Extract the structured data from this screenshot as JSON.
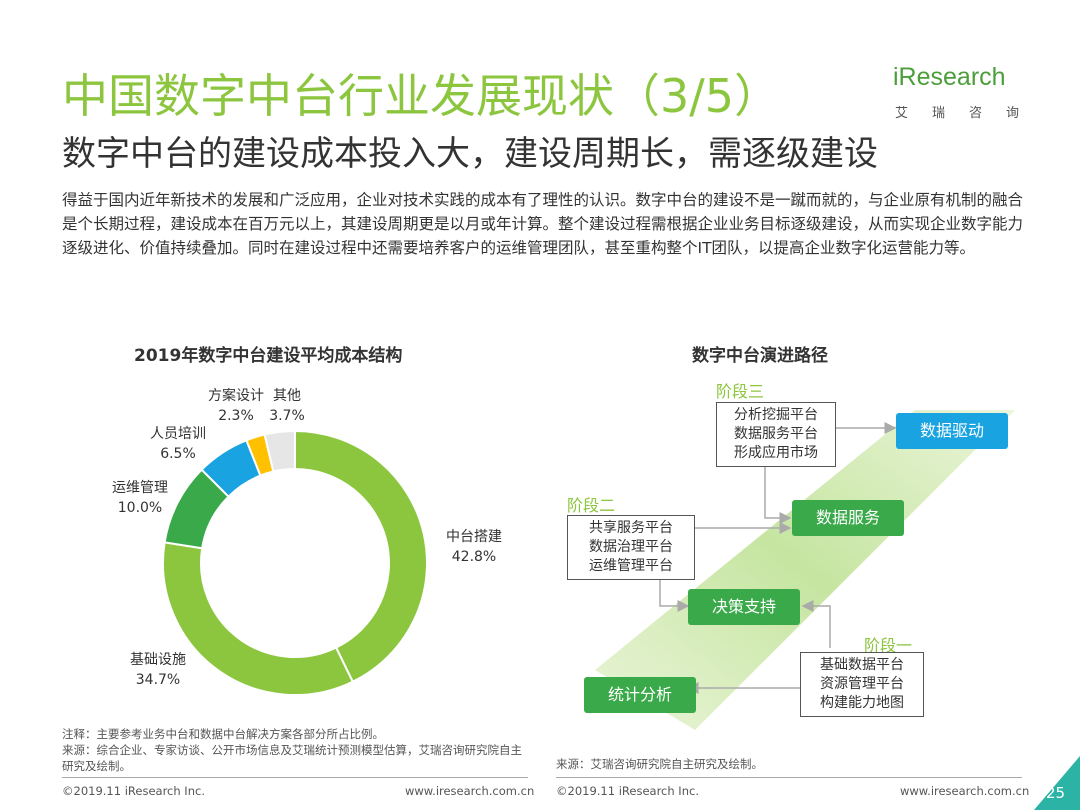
{
  "header": {
    "title": "中国数字中台行业发展现状（3/5）",
    "subtitle": "数字中台的建设成本投入大，建设周期长，需逐级建设",
    "logo_word": "iResearch",
    "logo_cn": "艾瑞咨询"
  },
  "intro": "得益于国内近年新技术的发展和广泛应用，企业对技术实践的成本有了理性的认识。数字中台的建设不是一蹴而就的，与企业原有机制的融合是个长期过程，建设成本在百万元以上，其建设周期更是以月或年计算。整个建设过程需根据企业业务目标逐级建设，从而实现企业数字能力逐级进化、价值持续叠加。同时在建设过程中还需要培养客户的运维管理团队，甚至重构整个IT团队，以提高企业数字化运营能力等。",
  "chart_data": {
    "type": "pie",
    "title": "2019年数字中台建设平均成本结构",
    "categories": [
      "中台搭建",
      "基础设施",
      "运维管理",
      "人员培训",
      "方案设计",
      "其他"
    ],
    "values": [
      42.8,
      34.7,
      10.0,
      6.5,
      2.3,
      3.7
    ],
    "value_labels": [
      "42.8%",
      "34.7%",
      "10.0%",
      "6.5%",
      "2.3%",
      "3.7%"
    ],
    "colors": [
      "#8cc63f",
      "#8cc63f",
      "#3aa94a",
      "#19a3e0",
      "#ffc000",
      "#e6e6e6"
    ],
    "donut": true
  },
  "diagram": {
    "title": "数字中台演进路径",
    "stages": [
      "阶段三",
      "阶段二",
      "阶段一"
    ],
    "boxes": [
      [
        "分析挖掘平台",
        "数据服务平台",
        "形成应用市场"
      ],
      [
        "共享服务平台",
        "数据治理平台",
        "运维管理平台"
      ],
      [
        "基础数据平台",
        "资源管理平台",
        "构建能力地图"
      ]
    ],
    "steps": [
      "数据驱动",
      "数据服务",
      "决策支持",
      "统计分析"
    ],
    "colors": {
      "step_green": "#3aa94a",
      "step_blue": "#19a3e0",
      "stage_text": "#8cc63f"
    }
  },
  "notes": {
    "left": "注释：主要参考业务中台和数据中台解决方案各部分所占比例。\n来源：综合企业、专家访谈、公开市场信息及艾瑞统计预测模型估算，艾瑞咨询研究院自主研究及绘制。",
    "right": "来源：艾瑞咨询研究院自主研究及绘制。"
  },
  "footer": {
    "left_copy": "©2019.11 iResearch Inc.",
    "left_url": "www.iresearch.com.cn",
    "right_copy": "©2019.11 iResearch Inc.",
    "right_url": "www.iresearch.com.cn",
    "page": "25"
  }
}
